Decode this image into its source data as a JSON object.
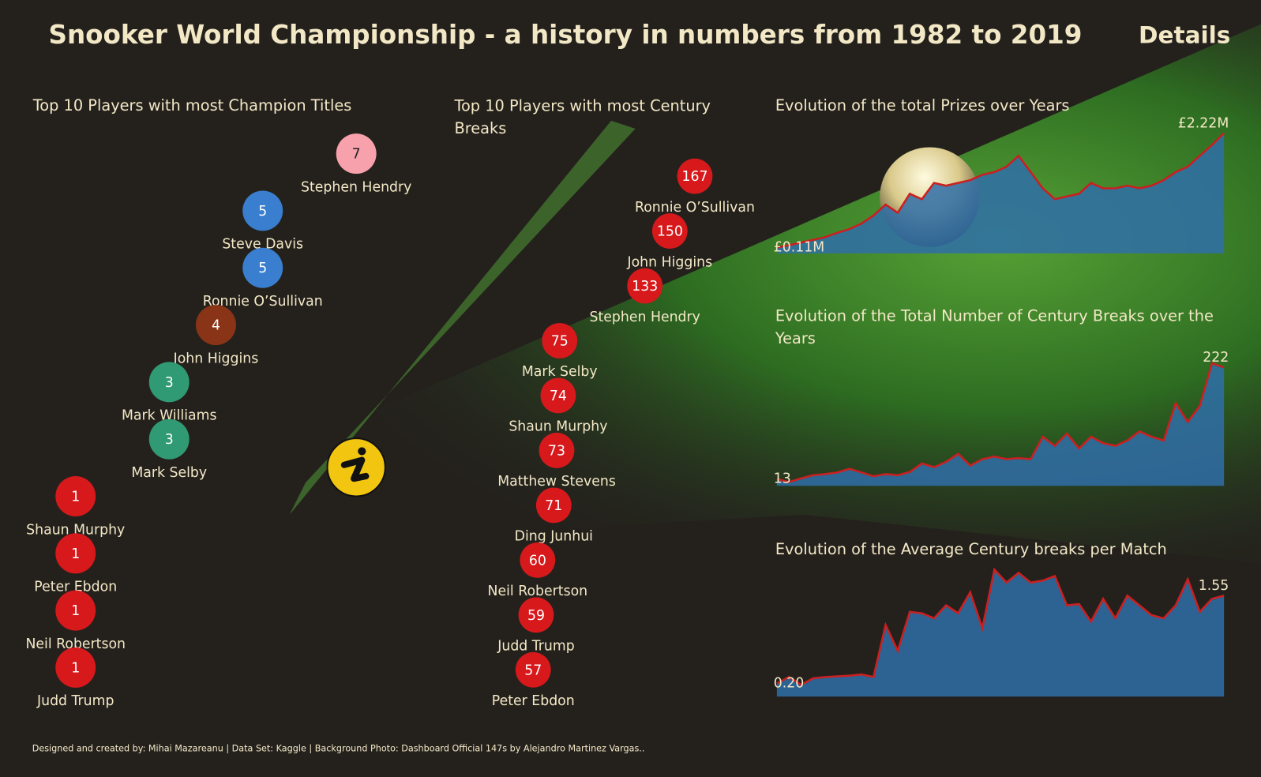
{
  "title": "Snooker World Championship - a history in numbers from 1982 to 2019",
  "details": "Details",
  "footer": "Designed and created by: Mihai Mazareanu | Data Set: Kaggle | Background Photo: Dashboard Official 147s by Alejandro Martinez Vargas..",
  "chart_data": [
    {
      "type": "dots",
      "title": "Top 10 Players with most Champion Titles",
      "categories": [
        "Stephen Hendry",
        "Steve Davis",
        "Ronnie O’Sullivan",
        "John Higgins",
        "Mark Williams",
        "Mark Selby",
        "Shaun Murphy",
        "Peter Ebdon",
        "Neil Robertson",
        "Judd Trump"
      ],
      "values": [
        7,
        5,
        5,
        4,
        3,
        3,
        1,
        1,
        1,
        1
      ],
      "colors": [
        "#f7a1ac",
        "#3a7fcf",
        "#3a7fcf",
        "#8a3417",
        "#2f9a73",
        "#2f9a73",
        "#d7191c",
        "#d7191c",
        "#d7191c",
        "#d7191c"
      ],
      "xlim": [
        1,
        7
      ]
    },
    {
      "type": "dots",
      "title": "Top 10 Players with most Century Breaks",
      "categories": [
        "Ronnie O’Sullivan",
        "John Higgins",
        "Stephen Hendry",
        "Mark Selby",
        "Shaun Murphy",
        "Matthew Stevens",
        "Ding Junhui",
        "Neil Robertson",
        "Judd Trump",
        "Peter Ebdon"
      ],
      "values": [
        167,
        150,
        133,
        75,
        74,
        73,
        71,
        60,
        59,
        57
      ],
      "color": "#d7191c",
      "xlim": [
        57,
        167
      ]
    },
    {
      "type": "area",
      "title": "Evolution of the total Prizes over Years",
      "values": [
        0.11,
        0.15,
        0.2,
        0.25,
        0.3,
        0.38,
        0.45,
        0.55,
        0.7,
        0.9,
        0.75,
        1.1,
        1.0,
        1.3,
        1.25,
        1.3,
        1.35,
        1.45,
        1.5,
        1.6,
        1.8,
        1.5,
        1.2,
        1.0,
        1.05,
        1.1,
        1.3,
        1.2,
        1.2,
        1.25,
        1.2,
        1.25,
        1.35,
        1.5,
        1.6,
        1.8,
        2.0,
        2.22
      ],
      "value_labels": [
        "£0.11M",
        null,
        null,
        null,
        null,
        null,
        null,
        null,
        null,
        null,
        null,
        null,
        null,
        null,
        null,
        null,
        null,
        null,
        null,
        null,
        null,
        null,
        null,
        null,
        null,
        null,
        null,
        null,
        null,
        null,
        null,
        null,
        null,
        null,
        null,
        null,
        null,
        "£2.22M"
      ],
      "ylim": [
        0,
        2.3
      ],
      "color": "#2f6fa8",
      "line_color": "#cc1f1f"
    },
    {
      "type": "area",
      "title": "Evolution of the Total Number of Century Breaks over the Years",
      "values": [
        13,
        7,
        14,
        20,
        22,
        25,
        32,
        25,
        18,
        22,
        20,
        26,
        42,
        35,
        45,
        60,
        38,
        50,
        55,
        50,
        52,
        50,
        92,
        75,
        98,
        70,
        92,
        80,
        75,
        85,
        102,
        92,
        85,
        155,
        120,
        150,
        230,
        222
      ],
      "value_labels": [
        "13",
        null,
        null,
        null,
        null,
        null,
        null,
        null,
        null,
        null,
        null,
        null,
        null,
        null,
        null,
        null,
        null,
        null,
        null,
        null,
        null,
        null,
        null,
        null,
        null,
        null,
        null,
        null,
        null,
        null,
        null,
        null,
        null,
        null,
        null,
        null,
        null,
        "222"
      ],
      "ylim": [
        0,
        240
      ],
      "color": "#2f6fa8",
      "line_color": "#cc1f1f"
    },
    {
      "type": "area",
      "title": "Evolution of the Average Century breaks per Match",
      "values": [
        0.2,
        0.3,
        0.18,
        0.28,
        0.3,
        0.31,
        0.32,
        0.34,
        0.3,
        1.1,
        0.7,
        1.3,
        1.28,
        1.2,
        1.4,
        1.28,
        1.6,
        1.05,
        1.95,
        1.75,
        1.9,
        1.75,
        1.78,
        1.85,
        1.4,
        1.42,
        1.15,
        1.5,
        1.2,
        1.55,
        1.4,
        1.25,
        1.2,
        1.4,
        1.8,
        1.3,
        1.5,
        1.55
      ],
      "value_labels": [
        "0.20",
        null,
        null,
        null,
        null,
        null,
        null,
        null,
        null,
        null,
        null,
        null,
        null,
        null,
        null,
        null,
        null,
        null,
        null,
        null,
        null,
        null,
        null,
        null,
        null,
        null,
        null,
        null,
        null,
        null,
        null,
        null,
        null,
        null,
        null,
        null,
        null,
        "1.55"
      ],
      "ylim": [
        0,
        2.05
      ],
      "color": "#2f6fa8",
      "line_color": "#cc1f1f"
    }
  ]
}
